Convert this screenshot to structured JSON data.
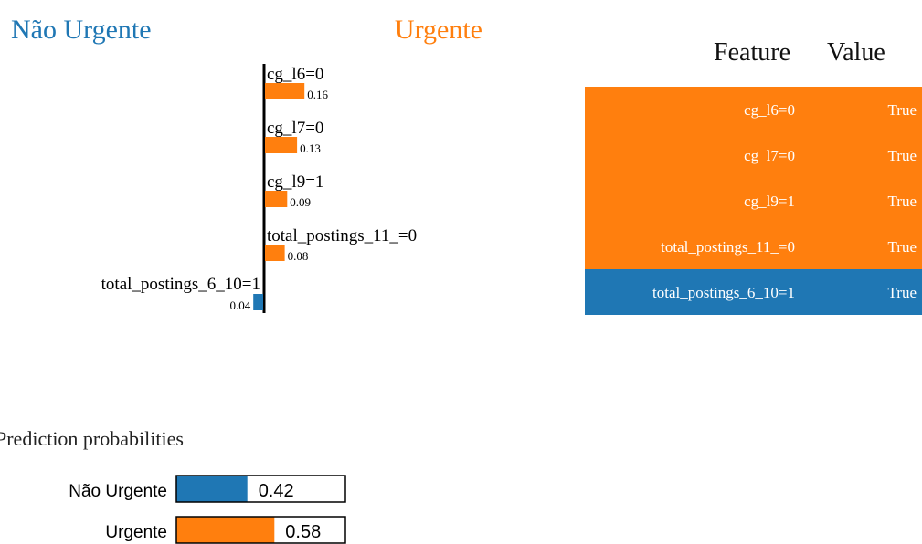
{
  "explanation": {
    "classes": [
      {
        "name": "Não Urgente",
        "color": "#1f77b4"
      },
      {
        "name": "Urgente",
        "color": "#ff7f0e"
      }
    ],
    "features": [
      "cg_l6=0",
      "cg_l7=0",
      "cg_l9=1",
      "total_postings_11_=0",
      "total_postings_6_10=1"
    ],
    "weights": [
      0.16,
      0.13,
      0.09,
      0.08,
      -0.04
    ],
    "value_labels": [
      "0.16",
      "0.13",
      "0.09",
      "0.08",
      "0.04"
    ]
  },
  "table": {
    "header": [
      "Feature",
      "Value"
    ],
    "rows": [
      [
        "cg_l6=0",
        "True"
      ],
      [
        "cg_l7=0",
        "True"
      ],
      [
        "cg_l9=1",
        "True"
      ],
      [
        "total_postings_11_=0",
        "True"
      ],
      [
        "total_postings_6_10=1",
        "True"
      ]
    ]
  },
  "probabilities": {
    "title": "Prediction probabilities",
    "type": "bar",
    "categories": [
      "Não Urgente",
      "Urgente"
    ],
    "values": [
      0.42,
      0.58
    ],
    "colors": [
      "#1f77b4",
      "#ff7f0e"
    ],
    "xlim": [
      0,
      1
    ]
  }
}
